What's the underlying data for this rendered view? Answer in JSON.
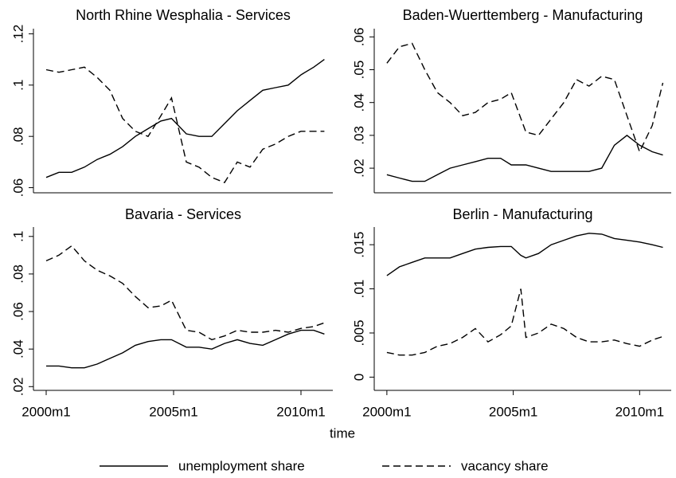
{
  "x_label": "time",
  "chart_data": [
    {
      "type": "line",
      "title": "North Rhine Wesphalia - Services",
      "x": [
        2000,
        2000.5,
        2001,
        2001.5,
        2002,
        2002.5,
        2003,
        2003.5,
        2004,
        2004.5,
        2004.92,
        2005.5,
        2006,
        2006.5,
        2007,
        2007.5,
        2008,
        2008.5,
        2009,
        2009.5,
        2010,
        2010.5,
        2010.92
      ],
      "xlim": [
        1999.5,
        2011.25
      ],
      "ylim": [
        0.058,
        0.122
      ],
      "yticks": [
        {
          "value": 0.06,
          "label": ".06"
        },
        {
          "value": 0.08,
          "label": ".08"
        },
        {
          "value": 0.1,
          "label": ".1"
        },
        {
          "value": 0.12,
          "label": ".12"
        }
      ],
      "series": [
        {
          "name": "unemployment share",
          "color": "#000000",
          "style": "solid",
          "values": [
            0.064,
            0.066,
            0.066,
            0.068,
            0.071,
            0.073,
            0.076,
            0.08,
            0.083,
            0.086,
            0.087,
            0.081,
            0.08,
            0.08,
            0.085,
            0.09,
            0.094,
            0.098,
            0.099,
            0.1,
            0.104,
            0.107,
            0.11
          ]
        },
        {
          "name": "vacancy share",
          "color": "#000000",
          "style": "dashed",
          "values": [
            0.106,
            0.105,
            0.106,
            0.107,
            0.103,
            0.098,
            0.087,
            0.082,
            0.08,
            0.088,
            0.095,
            0.07,
            0.068,
            0.064,
            0.062,
            0.07,
            0.068,
            0.075,
            0.077,
            0.08,
            0.082,
            0.082,
            0.082
          ]
        }
      ]
    },
    {
      "type": "line",
      "title": "Baden-Wuerttemberg - Manufacturing",
      "x": [
        2000,
        2000.5,
        2001,
        2001.5,
        2002,
        2002.5,
        2003,
        2003.5,
        2004,
        2004.5,
        2004.92,
        2005.5,
        2006,
        2006.5,
        2007,
        2007.5,
        2008,
        2008.5,
        2009,
        2009.5,
        2010,
        2010.5,
        2010.92
      ],
      "xlim": [
        1999.5,
        2011.25
      ],
      "ylim": [
        0.0125,
        0.0625
      ],
      "yticks": [
        {
          "value": 0.02,
          "label": ".02"
        },
        {
          "value": 0.03,
          "label": ".03"
        },
        {
          "value": 0.04,
          "label": ".04"
        },
        {
          "value": 0.05,
          "label": ".05"
        },
        {
          "value": 0.06,
          "label": ".06"
        }
      ],
      "series": [
        {
          "name": "unemployment share",
          "color": "#000000",
          "style": "solid",
          "values": [
            0.018,
            0.017,
            0.016,
            0.016,
            0.018,
            0.02,
            0.021,
            0.022,
            0.023,
            0.023,
            0.021,
            0.021,
            0.02,
            0.019,
            0.019,
            0.019,
            0.019,
            0.02,
            0.027,
            0.03,
            0.027,
            0.025,
            0.024
          ]
        },
        {
          "name": "vacancy share",
          "color": "#000000",
          "style": "dashed",
          "values": [
            0.052,
            0.057,
            0.058,
            0.05,
            0.043,
            0.04,
            0.036,
            0.037,
            0.04,
            0.041,
            0.043,
            0.031,
            0.03,
            0.035,
            0.04,
            0.047,
            0.045,
            0.048,
            0.047,
            0.036,
            0.025,
            0.033,
            0.046
          ]
        }
      ]
    },
    {
      "type": "line",
      "title": "Bavaria - Services",
      "x": [
        2000,
        2000.5,
        2001,
        2001.5,
        2002,
        2002.5,
        2003,
        2003.5,
        2004,
        2004.5,
        2004.92,
        2005.5,
        2006,
        2006.5,
        2007,
        2007.5,
        2008,
        2008.5,
        2009,
        2009.5,
        2010,
        2010.5,
        2010.92
      ],
      "xlim": [
        1999.5,
        2011.25
      ],
      "ylim": [
        0.018,
        0.105
      ],
      "xticks": [
        {
          "value": 2000,
          "label": "2000m1"
        },
        {
          "value": 2005,
          "label": "2005m1"
        },
        {
          "value": 2010,
          "label": "2010m1"
        }
      ],
      "yticks": [
        {
          "value": 0.02,
          "label": ".02"
        },
        {
          "value": 0.04,
          "label": ".04"
        },
        {
          "value": 0.06,
          "label": ".06"
        },
        {
          "value": 0.08,
          "label": ".08"
        },
        {
          "value": 0.1,
          "label": ".1"
        }
      ],
      "series": [
        {
          "name": "unemployment share",
          "color": "#000000",
          "style": "solid",
          "values": [
            0.031,
            0.031,
            0.03,
            0.03,
            0.032,
            0.035,
            0.038,
            0.042,
            0.044,
            0.045,
            0.045,
            0.041,
            0.041,
            0.04,
            0.043,
            0.045,
            0.043,
            0.042,
            0.045,
            0.048,
            0.05,
            0.05,
            0.048
          ]
        },
        {
          "name": "vacancy share",
          "color": "#000000",
          "style": "dashed",
          "values": [
            0.087,
            0.09,
            0.095,
            0.087,
            0.082,
            0.079,
            0.075,
            0.068,
            0.062,
            0.063,
            0.066,
            0.05,
            0.049,
            0.045,
            0.047,
            0.05,
            0.049,
            0.049,
            0.05,
            0.049,
            0.051,
            0.052,
            0.054
          ]
        }
      ]
    },
    {
      "type": "line",
      "title": "Berlin - Manufacturing",
      "x": [
        2000,
        2000.5,
        2001,
        2001.5,
        2002,
        2002.5,
        2003,
        2003.5,
        2004,
        2004.5,
        2004.92,
        2005.3,
        2005.5,
        2006,
        2006.5,
        2007,
        2007.5,
        2008,
        2008.5,
        2009,
        2009.5,
        2010,
        2010.5,
        2010.92
      ],
      "xlim": [
        1999.5,
        2011.25
      ],
      "ylim": [
        -0.0015,
        0.017
      ],
      "xticks": [
        {
          "value": 2000,
          "label": "2000m1"
        },
        {
          "value": 2005,
          "label": "2005m1"
        },
        {
          "value": 2010,
          "label": "2010m1"
        }
      ],
      "yticks": [
        0,
        {
          "value": 0.005,
          "label": ".005"
        },
        {
          "value": 0.01,
          "label": ".01"
        },
        {
          "value": 0.015,
          "label": ".015"
        }
      ],
      "series": [
        {
          "name": "unemployment share",
          "color": "#000000",
          "style": "solid",
          "values": [
            0.0115,
            0.0125,
            0.013,
            0.0135,
            0.0135,
            0.0135,
            0.014,
            0.0145,
            0.0147,
            0.0148,
            0.0148,
            0.0138,
            0.0135,
            0.014,
            0.015,
            0.0155,
            0.016,
            0.0163,
            0.0162,
            0.0157,
            0.0155,
            0.0153,
            0.015,
            0.0147
          ]
        },
        {
          "name": "vacancy share",
          "color": "#000000",
          "style": "dashed",
          "values": [
            0.0028,
            0.0025,
            0.0025,
            0.0028,
            0.0035,
            0.0038,
            0.0045,
            0.0055,
            0.004,
            0.0048,
            0.0058,
            0.01,
            0.0045,
            0.005,
            0.006,
            0.0055,
            0.0045,
            0.004,
            0.004,
            0.0042,
            0.0038,
            0.0035,
            0.0042,
            0.0046
          ]
        }
      ]
    }
  ]
}
